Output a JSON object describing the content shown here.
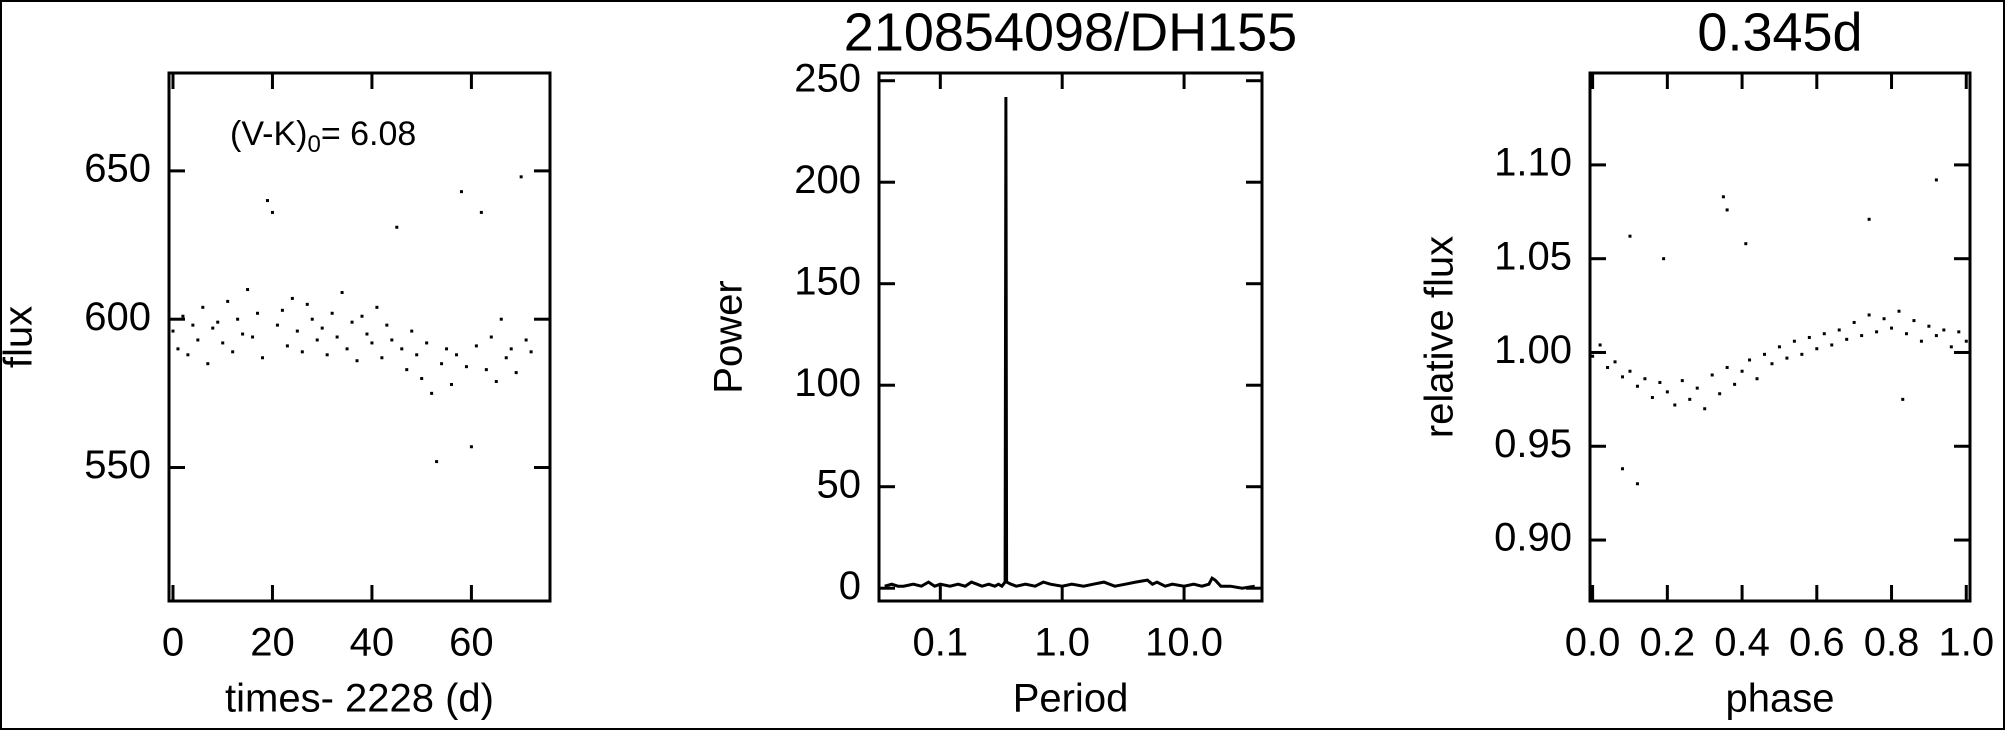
{
  "chart_data": [
    {
      "type": "scatter",
      "x_label": "times- 2228 (d)",
      "y_label": "flux",
      "annotation": {
        "text": "(V-K)",
        "sub": "0",
        "tail": "= 6.08"
      },
      "color": "#000000",
      "xlim": [
        -0.8,
        75.8
      ],
      "ylim": [
        505,
        683
      ],
      "xticks": [
        0,
        20,
        40,
        60
      ],
      "yticks": [
        550,
        600,
        650
      ],
      "x": [
        0,
        1,
        2,
        3,
        4,
        5,
        6,
        7,
        8,
        9,
        10,
        11,
        12,
        13,
        14,
        15,
        16,
        17,
        18,
        19,
        20,
        21,
        22,
        23,
        24,
        25,
        26,
        27,
        28,
        29,
        30,
        31,
        32,
        33,
        34,
        35,
        36,
        37,
        38,
        39,
        40,
        41,
        42,
        43,
        44,
        45,
        46,
        47,
        48,
        49,
        50,
        51,
        52,
        53,
        54,
        55,
        56,
        57,
        58,
        59,
        60,
        61,
        62,
        63,
        64,
        65,
        66,
        67,
        68,
        69,
        70,
        71,
        72
      ],
      "values": [
        596,
        590,
        601,
        588,
        598,
        593,
        604,
        585,
        597,
        599,
        592,
        606,
        589,
        600,
        595,
        610,
        594,
        602,
        587,
        640,
        636,
        598,
        603,
        591,
        607,
        596,
        589,
        605,
        600,
        593,
        597,
        588,
        602,
        594,
        609,
        590,
        599,
        586,
        601,
        595,
        592,
        604,
        587,
        598,
        593,
        631,
        590,
        583,
        596,
        588,
        580,
        592,
        575,
        552,
        585,
        590,
        578,
        588,
        643,
        584,
        557,
        591,
        636,
        583,
        594,
        579,
        600,
        587,
        590,
        582,
        648,
        593,
        589
      ]
    },
    {
      "type": "line",
      "title": "210854098/DH155",
      "x_label": "Period",
      "y_label": "Power",
      "xscale": "log",
      "color": "#000000",
      "xlim": [
        0.0314,
        43.6
      ],
      "ylim": [
        -6.3,
        253.8
      ],
      "xticks": [
        0.1,
        {
          "value": 1,
          "label": "1.0"
        },
        {
          "value": 10,
          "label": "10.0"
        }
      ],
      "yticks": [
        0,
        50,
        100,
        150,
        200,
        250
      ],
      "x": [
        0.035,
        0.04,
        0.045,
        0.05,
        0.06,
        0.07,
        0.08,
        0.09,
        0.1,
        0.12,
        0.14,
        0.16,
        0.18,
        0.2,
        0.22,
        0.25,
        0.28,
        0.3,
        0.32,
        0.34,
        0.345,
        0.35,
        0.38,
        0.42,
        0.5,
        0.6,
        0.7,
        0.8,
        1.0,
        1.2,
        1.5,
        1.8,
        2.2,
        2.7,
        3.3,
        4,
        5,
        5.5,
        6,
        7,
        8,
        10,
        12,
        14,
        16,
        17,
        18,
        20,
        24,
        30,
        38
      ],
      "values": [
        1,
        2,
        1,
        1,
        2,
        1,
        3,
        1,
        2,
        1,
        2,
        1,
        3,
        2,
        1,
        2,
        1,
        2,
        1,
        3,
        242,
        3,
        2,
        1,
        2,
        1,
        3,
        2,
        1,
        2,
        1,
        2,
        3,
        1,
        2,
        3,
        4,
        2,
        3,
        1,
        2,
        1,
        2,
        1,
        2,
        5,
        4,
        1,
        1,
        0,
        1
      ]
    },
    {
      "type": "scatter",
      "title": "0.345d",
      "x_label": "phase",
      "y_label": "relative flux",
      "color": "#000000",
      "xlim": [
        -0.007,
        1.01
      ],
      "ylim": [
        0.8675,
        1.149
      ],
      "xticks": [
        {
          "value": 0,
          "label": "0.0"
        },
        0.2,
        0.4,
        0.6,
        0.8,
        {
          "value": 1,
          "label": "1.0"
        }
      ],
      "yticks": [
        {
          "value": 0.9,
          "label": "0.90"
        },
        0.95,
        {
          "value": 1,
          "label": "1.00"
        },
        1.05,
        {
          "value": 1.1,
          "label": "1.10"
        }
      ],
      "x": [
        0,
        0.02,
        0.04,
        0.06,
        0.08,
        0.1,
        0.12,
        0.14,
        0.16,
        0.18,
        0.2,
        0.22,
        0.24,
        0.26,
        0.28,
        0.3,
        0.32,
        0.34,
        0.36,
        0.38,
        0.4,
        0.42,
        0.44,
        0.46,
        0.48,
        0.5,
        0.52,
        0.54,
        0.56,
        0.58,
        0.6,
        0.62,
        0.64,
        0.66,
        0.68,
        0.7,
        0.72,
        0.74,
        0.76,
        0.78,
        0.8,
        0.82,
        0.84,
        0.86,
        0.88,
        0.9,
        0.92,
        0.94,
        0.96,
        0.98,
        1.0,
        0.1,
        0.19,
        0.35,
        0.36,
        0.41,
        0.74,
        0.92,
        0.08,
        0.12,
        0.83
      ],
      "values": [
        0.998,
        1.004,
        0.992,
        0.995,
        0.987,
        0.99,
        0.982,
        0.986,
        0.976,
        0.984,
        0.979,
        0.972,
        0.985,
        0.975,
        0.981,
        0.97,
        0.988,
        0.978,
        0.992,
        0.983,
        0.99,
        0.996,
        0.986,
        0.999,
        0.994,
        1.003,
        0.997,
        1.006,
        0.999,
        1.008,
        1.002,
        1.01,
        1.004,
        1.012,
        1.007,
        1.016,
        1.009,
        1.02,
        1.011,
        1.018,
        1.013,
        1.022,
        1.01,
        1.017,
        1.006,
        1.014,
        1.009,
        1.012,
        1.003,
        1.011,
        1.006,
        1.062,
        1.05,
        1.083,
        1.076,
        1.058,
        1.071,
        1.092,
        0.938,
        0.93,
        0.975
      ]
    }
  ]
}
